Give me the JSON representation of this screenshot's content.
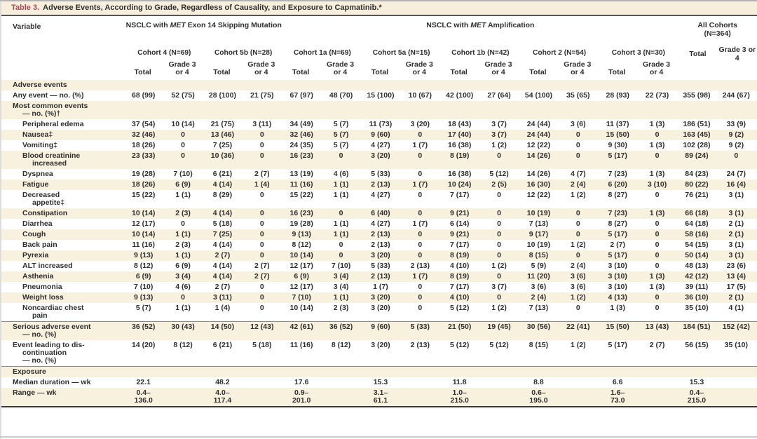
{
  "title": {
    "label": "Table 3.",
    "text": "Adverse Events, According to Grade, Regardless of Causality, and Exposure to Capmatinib.*"
  },
  "header": {
    "variable": "Variable",
    "groups": [
      {
        "prefix": "NSCLC with ",
        "gene": "MET",
        "suffix": " Exon 14 Skipping Mutation"
      },
      {
        "prefix": "NSCLC with ",
        "gene": "MET",
        "suffix": " Amplification"
      }
    ],
    "all_cohorts": "All Cohorts\n(N=364)",
    "cohorts": [
      "Cohort 4 (N=69)",
      "Cohort 5b (N=28)",
      "Cohort 1a (N=69)",
      "Cohort 5a (N=15)",
      "Cohort 1b (N=42)",
      "Cohort 2 (N=54)",
      "Cohort 3 (N=30)"
    ],
    "sub": {
      "total": "Total",
      "grade": "Grade 3 or 4"
    }
  },
  "table": {
    "rows": [
      {
        "section": true,
        "label": "Adverse events"
      },
      {
        "label": "Any event — no. (%)",
        "indent": 0,
        "values": [
          "68 (99)",
          "52 (75)",
          "28 (100)",
          "21 (75)",
          "67 (97)",
          "48 (70)",
          "15 (100)",
          "10 (67)",
          "42 (100)",
          "27 (64)",
          "54 (100)",
          "35 (65)",
          "28 (93)",
          "22 (73)",
          "355 (98)",
          "244 (67)"
        ]
      },
      {
        "label": "Most common events\n— no. (%)†",
        "indent": 0,
        "values": [
          "",
          "",
          "",
          "",
          "",
          "",
          "",
          "",
          "",
          "",
          "",
          "",
          "",
          "",
          "",
          ""
        ]
      },
      {
        "label": "Peripheral edema",
        "indent": 1,
        "values": [
          "37 (54)",
          "10 (14)",
          "21 (75)",
          "3 (11)",
          "34 (49)",
          "5 (7)",
          "11 (73)",
          "3 (20)",
          "18 (43)",
          "3 (7)",
          "24 (44)",
          "3 (6)",
          "11 (37)",
          "1 (3)",
          "186 (51)",
          "33 (9)"
        ]
      },
      {
        "label": "Nausea‡",
        "indent": 1,
        "values": [
          "32 (46)",
          "0",
          "13 (46)",
          "0",
          "32 (46)",
          "5 (7)",
          "9 (60)",
          "0",
          "17 (40)",
          "3 (7)",
          "24 (44)",
          "0",
          "15 (50)",
          "0",
          "163 (45)",
          "9 (2)"
        ]
      },
      {
        "label": "Vomiting‡",
        "indent": 1,
        "values": [
          "18 (26)",
          "0",
          "7 (25)",
          "0",
          "24 (35)",
          "5 (7)",
          "4 (27)",
          "1 (7)",
          "16 (38)",
          "1 (2)",
          "12 (22)",
          "0",
          "9 (30)",
          "1 (3)",
          "102 (28)",
          "9 (2)"
        ]
      },
      {
        "label": "Blood creatinine\nincreased",
        "indent": 1,
        "values": [
          "23 (33)",
          "0",
          "10 (36)",
          "0",
          "16 (23)",
          "0",
          "3 (20)",
          "0",
          "8 (19)",
          "0",
          "14 (26)",
          "0",
          "5 (17)",
          "0",
          "89 (24)",
          "0"
        ]
      },
      {
        "label": "Dyspnea",
        "indent": 1,
        "values": [
          "19 (28)",
          "7 (10)",
          "6 (21)",
          "2 (7)",
          "13 (19)",
          "4 (6)",
          "5 (33)",
          "0",
          "16 (38)",
          "5 (12)",
          "14 (26)",
          "4 (7)",
          "7 (23)",
          "1 (3)",
          "84 (23)",
          "24 (7)"
        ]
      },
      {
        "label": "Fatigue",
        "indent": 1,
        "values": [
          "18 (26)",
          "6 (9)",
          "4 (14)",
          "1 (4)",
          "11 (16)",
          "1 (1)",
          "2 (13)",
          "1 (7)",
          "10 (24)",
          "2 (5)",
          "16 (30)",
          "2 (4)",
          "6 (20)",
          "3 (10)",
          "80 (22)",
          "16 (4)"
        ]
      },
      {
        "label": "Decreased\nappetite‡",
        "indent": 1,
        "values": [
          "15 (22)",
          "1 (1)",
          "8 (29)",
          "0",
          "15 (22)",
          "1 (1)",
          "4 (27)",
          "0",
          "7 (17)",
          "0",
          "12 (22)",
          "1 (2)",
          "8 (27)",
          "0",
          "76 (21)",
          "3 (1)"
        ]
      },
      {
        "label": "Constipation",
        "indent": 1,
        "values": [
          "10 (14)",
          "2 (3)",
          "4 (14)",
          "0",
          "16 (23)",
          "0",
          "6 (40)",
          "0",
          "9 (21)",
          "0",
          "10 (19)",
          "0",
          "7 (23)",
          "1 (3)",
          "66 (18)",
          "3 (1)"
        ]
      },
      {
        "label": "Diarrhea",
        "indent": 1,
        "values": [
          "12 (17)",
          "0",
          "5 (18)",
          "0",
          "19 (28)",
          "1 (1)",
          "4 (27)",
          "1 (7)",
          "6 (14)",
          "0",
          "7 (13)",
          "0",
          "8 (27)",
          "0",
          "64 (18)",
          "2 (1)"
        ]
      },
      {
        "label": "Cough",
        "indent": 1,
        "values": [
          "10 (14)",
          "1 (1)",
          "7 (25)",
          "0",
          "9 (13)",
          "1 (1)",
          "2 (13)",
          "0",
          "9 (21)",
          "0",
          "9 (17)",
          "0",
          "5 (17)",
          "0",
          "58 (16)",
          "2 (1)"
        ]
      },
      {
        "label": "Back pain",
        "indent": 1,
        "values": [
          "11 (16)",
          "2 (3)",
          "4 (14)",
          "0",
          "8 (12)",
          "0",
          "2 (13)",
          "0",
          "7 (17)",
          "0",
          "10 (19)",
          "1 (2)",
          "2 (7)",
          "0",
          "54 (15)",
          "3 (1)"
        ]
      },
      {
        "label": "Pyrexia",
        "indent": 1,
        "values": [
          "9 (13)",
          "1 (1)",
          "2 (7)",
          "0",
          "10 (14)",
          "0",
          "3 (20)",
          "0",
          "8 (19)",
          "0",
          "8 (15)",
          "0",
          "5 (17)",
          "0",
          "50 (14)",
          "3 (1)"
        ]
      },
      {
        "label": "ALT increased",
        "indent": 1,
        "values": [
          "8 (12)",
          "6 (9)",
          "4 (14)",
          "2 (7)",
          "12 (17)",
          "7 (10)",
          "5 (33)",
          "2 (13)",
          "4 (10)",
          "1 (2)",
          "5 (9)",
          "2 (4)",
          "3 (10)",
          "0",
          "48 (13)",
          "23 (6)"
        ]
      },
      {
        "label": "Asthenia",
        "indent": 1,
        "values": [
          "6 (9)",
          "3 (4)",
          "4 (14)",
          "2 (7)",
          "6 (9)",
          "3 (4)",
          "2 (13)",
          "1 (7)",
          "8 (19)",
          "0",
          "11 (20)",
          "3 (6)",
          "3 (10)",
          "1 (3)",
          "42 (12)",
          "13 (4)"
        ]
      },
      {
        "label": "Pneumonia",
        "indent": 1,
        "values": [
          "7 (10)",
          "4 (6)",
          "2 (7)",
          "0",
          "12 (17)",
          "3 (4)",
          "1 (7)",
          "0",
          "7 (17)",
          "3 (7)",
          "3 (6)",
          "3 (6)",
          "3 (10)",
          "1 (3)",
          "39 (11)",
          "17 (5)"
        ]
      },
      {
        "label": "Weight loss",
        "indent": 1,
        "values": [
          "9 (13)",
          "0",
          "3 (11)",
          "0",
          "7 (10)",
          "1 (1)",
          "3 (20)",
          "0",
          "4 (10)",
          "0",
          "2 (4)",
          "1 (2)",
          "4 (13)",
          "0",
          "36 (10)",
          "2 (1)"
        ]
      },
      {
        "label": "Noncardiac chest\npain",
        "indent": 1,
        "values": [
          "5 (7)",
          "1 (1)",
          "1 (4)",
          "0",
          "10 (14)",
          "2 (3)",
          "3 (20)",
          "0",
          "5 (12)",
          "1 (2)",
          "7 (13)",
          "0",
          "1 (3)",
          "0",
          "35 (10)",
          "4 (1)"
        ]
      },
      {
        "label": "Serious adverse event\n— no. (%)",
        "indent": 0,
        "rule": true,
        "values": [
          "36 (52)",
          "30 (43)",
          "14 (50)",
          "12 (43)",
          "42 (61)",
          "36 (52)",
          "9 (60)",
          "5 (33)",
          "21 (50)",
          "19 (45)",
          "30 (56)",
          "22 (41)",
          "15 (50)",
          "13 (43)",
          "184 (51)",
          "152 (42)"
        ]
      },
      {
        "label": "Event leading to dis-\ncontinuation\n— no. (%)",
        "indent": 0,
        "values": [
          "14 (20)",
          "8 (12)",
          "6 (21)",
          "5 (18)",
          "11 (16)",
          "8 (12)",
          "3 (20)",
          "2 (13)",
          "5 (12)",
          "5 (12)",
          "8 (15)",
          "1 (2)",
          "5 (17)",
          "2 (7)",
          "56 (15)",
          "35 (10)"
        ]
      },
      {
        "section": true,
        "rule": true,
        "label": "Exposure"
      },
      {
        "label": "Median duration — wk",
        "indent": 0,
        "values": [
          "22.1",
          "",
          "48.2",
          "",
          "17.6",
          "",
          "15.3",
          "",
          "11.8",
          "",
          "8.8",
          "",
          "6.6",
          "",
          "15.3",
          ""
        ]
      },
      {
        "label": "Range — wk",
        "indent": 0,
        "values": [
          "0.4–\n136.0",
          "",
          "4.0–\n117.4",
          "",
          "0.9–\n201.0",
          "",
          "3.1–\n61.1",
          "",
          "1.0–\n215.0",
          "",
          "0.6–\n195.0",
          "",
          "1.6–\n73.0",
          "",
          "0.4–\n215.0",
          ""
        ]
      }
    ]
  }
}
